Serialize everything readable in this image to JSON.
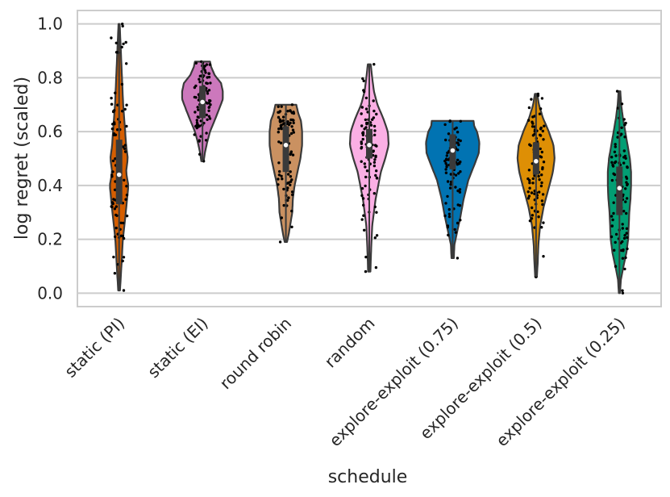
{
  "chart_data": {
    "type": "violin",
    "title": "",
    "xlabel": "schedule",
    "ylabel": "log regret (scaled)",
    "ylim": [
      -0.05,
      1.05
    ],
    "yticks": [
      0.0,
      0.2,
      0.4,
      0.6,
      0.8,
      1.0
    ],
    "ytick_labels": [
      "0.0",
      "0.2",
      "0.4",
      "0.6",
      "0.8",
      "1.0"
    ],
    "grid": "horizontal",
    "colors": {
      "grid": "#cccccc",
      "frame": "#cccccc",
      "outline": "#3a3a3a",
      "box": "#3a3a3a",
      "median": "#ffffff",
      "points": "#000000"
    },
    "categories": [
      "static (PI)",
      "static (EI)",
      "round robin",
      "random",
      "explore-exploit (0.75)",
      "explore-exploit (0.5)",
      "explore-exploit (0.25)"
    ],
    "series": [
      {
        "color": "#d55e00",
        "min": 0.01,
        "max": 1.0,
        "q1": 0.33,
        "median": 0.44,
        "q3": 0.57,
        "density": [
          [
            0.01,
            0.03
          ],
          [
            0.1,
            0.08
          ],
          [
            0.2,
            0.13
          ],
          [
            0.3,
            0.23
          ],
          [
            0.4,
            0.32
          ],
          [
            0.45,
            0.24
          ],
          [
            0.5,
            0.3
          ],
          [
            0.55,
            0.24
          ],
          [
            0.6,
            0.21
          ],
          [
            0.7,
            0.14
          ],
          [
            0.8,
            0.1
          ],
          [
            0.9,
            0.06
          ],
          [
            1.0,
            0.02
          ]
        ]
      },
      {
        "color": "#cc78bc",
        "min": 0.49,
        "max": 0.86,
        "q1": 0.65,
        "median": 0.71,
        "q3": 0.77,
        "density": [
          [
            0.49,
            0.04
          ],
          [
            0.52,
            0.08
          ],
          [
            0.56,
            0.16
          ],
          [
            0.6,
            0.26
          ],
          [
            0.65,
            0.45
          ],
          [
            0.68,
            0.56
          ],
          [
            0.72,
            0.7
          ],
          [
            0.75,
            0.7
          ],
          [
            0.78,
            0.64
          ],
          [
            0.81,
            0.42
          ],
          [
            0.84,
            0.3
          ],
          [
            0.86,
            0.26
          ]
        ]
      },
      {
        "color": "#ca9161",
        "min": 0.19,
        "max": 0.7,
        "q1": 0.45,
        "median": 0.55,
        "q3": 0.62,
        "density": [
          [
            0.19,
            0.04
          ],
          [
            0.22,
            0.1
          ],
          [
            0.26,
            0.16
          ],
          [
            0.3,
            0.22
          ],
          [
            0.35,
            0.24
          ],
          [
            0.4,
            0.3
          ],
          [
            0.45,
            0.4
          ],
          [
            0.5,
            0.5
          ],
          [
            0.55,
            0.56
          ],
          [
            0.6,
            0.56
          ],
          [
            0.64,
            0.52
          ],
          [
            0.67,
            0.42
          ],
          [
            0.7,
            0.36
          ]
        ]
      },
      {
        "color": "#fbafe4",
        "min": 0.08,
        "max": 0.85,
        "q1": 0.5,
        "median": 0.55,
        "q3": 0.61,
        "density": [
          [
            0.08,
            0.04
          ],
          [
            0.15,
            0.06
          ],
          [
            0.25,
            0.1
          ],
          [
            0.35,
            0.22
          ],
          [
            0.45,
            0.4
          ],
          [
            0.5,
            0.55
          ],
          [
            0.55,
            0.67
          ],
          [
            0.6,
            0.64
          ],
          [
            0.65,
            0.48
          ],
          [
            0.7,
            0.28
          ],
          [
            0.75,
            0.16
          ],
          [
            0.8,
            0.1
          ],
          [
            0.85,
            0.05
          ]
        ]
      },
      {
        "color": "#0173b2",
        "min": 0.13,
        "max": 0.64,
        "q1": 0.46,
        "median": 0.53,
        "q3": 0.59,
        "density": [
          [
            0.13,
            0.04
          ],
          [
            0.18,
            0.06
          ],
          [
            0.22,
            0.14
          ],
          [
            0.28,
            0.26
          ],
          [
            0.35,
            0.38
          ],
          [
            0.42,
            0.54
          ],
          [
            0.48,
            0.76
          ],
          [
            0.52,
            0.9
          ],
          [
            0.56,
            0.92
          ],
          [
            0.6,
            0.84
          ],
          [
            0.62,
            0.74
          ],
          [
            0.64,
            0.72
          ]
        ]
      },
      {
        "color": "#de8f05",
        "min": 0.06,
        "max": 0.74,
        "q1": 0.44,
        "median": 0.49,
        "q3": 0.56,
        "density": [
          [
            0.06,
            0.03
          ],
          [
            0.12,
            0.06
          ],
          [
            0.18,
            0.08
          ],
          [
            0.25,
            0.14
          ],
          [
            0.32,
            0.26
          ],
          [
            0.4,
            0.46
          ],
          [
            0.45,
            0.58
          ],
          [
            0.5,
            0.64
          ],
          [
            0.55,
            0.6
          ],
          [
            0.6,
            0.44
          ],
          [
            0.65,
            0.24
          ],
          [
            0.7,
            0.1
          ],
          [
            0.74,
            0.04
          ]
        ]
      },
      {
        "color": "#029e73",
        "min": 0.0,
        "max": 0.75,
        "q1": 0.29,
        "median": 0.39,
        "q3": 0.47,
        "density": [
          [
            0.0,
            0.02
          ],
          [
            0.05,
            0.05
          ],
          [
            0.1,
            0.14
          ],
          [
            0.15,
            0.24
          ],
          [
            0.2,
            0.3
          ],
          [
            0.25,
            0.32
          ],
          [
            0.3,
            0.34
          ],
          [
            0.35,
            0.38
          ],
          [
            0.4,
            0.4
          ],
          [
            0.45,
            0.4
          ],
          [
            0.5,
            0.36
          ],
          [
            0.55,
            0.28
          ],
          [
            0.6,
            0.2
          ],
          [
            0.65,
            0.12
          ],
          [
            0.7,
            0.06
          ],
          [
            0.75,
            0.03
          ]
        ]
      }
    ]
  }
}
